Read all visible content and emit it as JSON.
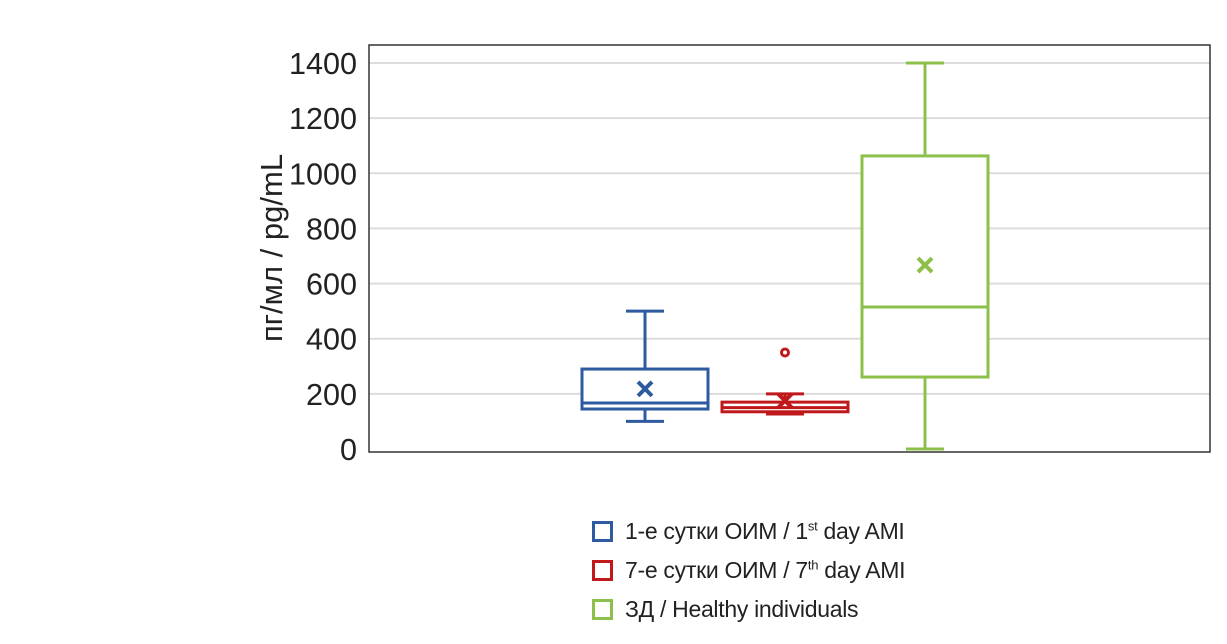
{
  "chart_data": {
    "type": "box",
    "ylabel": "пг/мл / pg/mL",
    "ylim": [
      0,
      1400
    ],
    "yticks": [
      0,
      200,
      400,
      600,
      800,
      1000,
      1200,
      1400
    ],
    "grid": true,
    "legend_position": "bottom",
    "series": [
      {
        "name": "1-е сутки ОИМ / 1st day AMI",
        "label_pre": "1-е сутки ОИМ / 1",
        "label_sup": "st",
        "label_post": " day AMI",
        "color": "#2E5AA0",
        "min": 100,
        "q1": 145,
        "median": 167,
        "q3": 290,
        "max": 500,
        "mean": 218,
        "outliers": []
      },
      {
        "name": "7-е сутки ОИМ / 7th day AMI",
        "label_pre": "7-е сутки ОИМ / 7",
        "label_sup": "th",
        "label_post": " day AMI",
        "color": "#C0191B",
        "min": 127,
        "q1": 135,
        "median": 150,
        "q3": 170,
        "max": 200,
        "mean": 175,
        "outliers": [
          350
        ]
      },
      {
        "name": "ЗД / Healthy individuals",
        "label_pre": "ЗД / Healthy individuals",
        "label_sup": "",
        "label_post": "",
        "color": "#8CC04B",
        "min": 0,
        "q1": 261,
        "median": 515,
        "q3": 1063,
        "max": 1400,
        "mean": 667,
        "outliers": []
      }
    ]
  }
}
